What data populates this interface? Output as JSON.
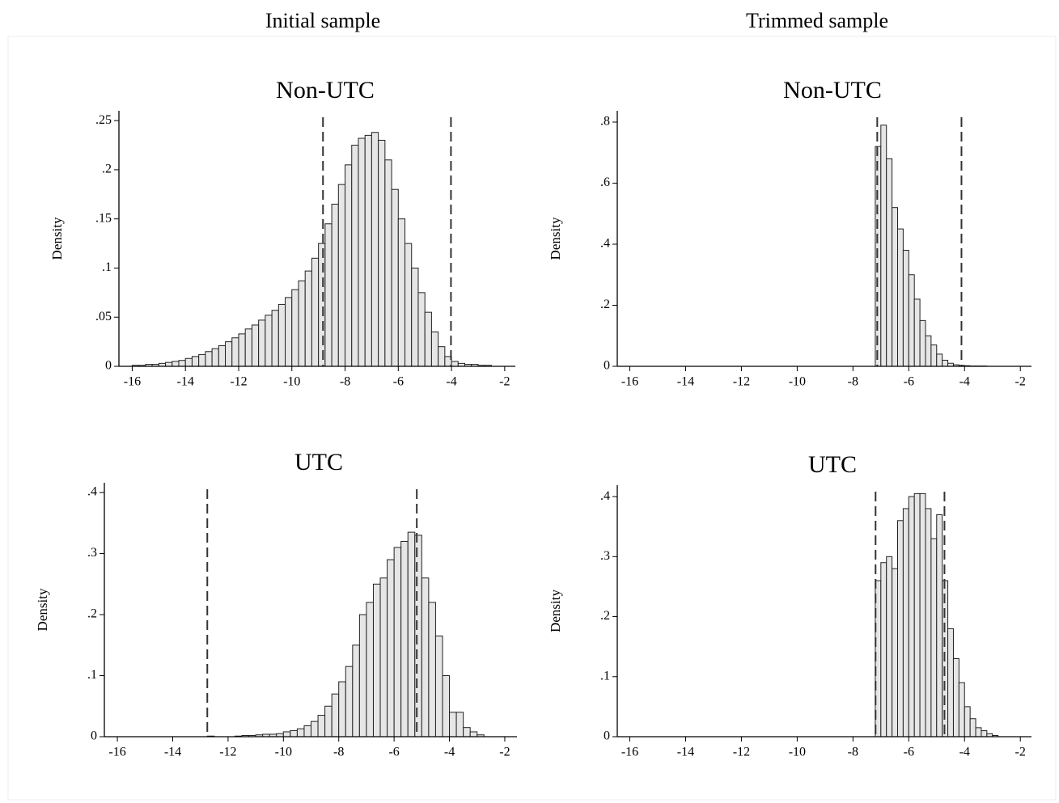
{
  "column_titles": [
    "Initial sample",
    "Trimmed sample"
  ],
  "chart_data": [
    {
      "type": "histogram",
      "title": "Non-UTC",
      "y_label": "Density",
      "color": "#e6e6e6",
      "bins": [
        -16,
        -15.75,
        -15.5,
        -15.25,
        -15,
        -14.75,
        -14.5,
        -14.25,
        -14,
        -13.75,
        -13.5,
        -13.25,
        -13,
        -12.75,
        -12.5,
        -12.25,
        -12,
        -11.75,
        -11.5,
        -11.25,
        -11,
        -10.75,
        -10.5,
        -10.25,
        -10,
        -9.75,
        -9.5,
        -9.25,
        -9,
        -8.75,
        -8.5,
        -8.25,
        -8,
        -7.75,
        -7.5,
        -7.25,
        -7,
        -6.75,
        -6.5,
        -6.25,
        -6,
        -5.75,
        -5.5,
        -5.25,
        -5,
        -4.75,
        -4.5,
        -4.25,
        -4,
        -3.75,
        -3.5,
        -3.25,
        -3,
        -2.75,
        -2.5
      ],
      "values": [
        0.001,
        0.001,
        0.002,
        0.002,
        0.003,
        0.004,
        0.005,
        0.006,
        0.008,
        0.01,
        0.012,
        0.015,
        0.018,
        0.021,
        0.025,
        0.029,
        0.033,
        0.038,
        0.042,
        0.047,
        0.052,
        0.057,
        0.063,
        0.07,
        0.078,
        0.087,
        0.097,
        0.11,
        0.125,
        0.145,
        0.165,
        0.185,
        0.205,
        0.225,
        0.232,
        0.235,
        0.238,
        0.23,
        0.21,
        0.18,
        0.15,
        0.125,
        0.1,
        0.075,
        0.055,
        0.035,
        0.02,
        0.01,
        0.005,
        0.003,
        0.002,
        0.002,
        0.001,
        0.001
      ],
      "vlines": [
        -8.83,
        -4.02
      ],
      "xlim": [
        -16.5,
        -1.6
      ],
      "ylim": [
        0,
        0.26
      ],
      "xticks": [
        -16,
        -14,
        -12,
        -10,
        -8,
        -6,
        -4,
        -2
      ],
      "yticks": [
        0,
        {
          "value": 0.05,
          "label": ".05"
        },
        {
          "value": 0.1,
          "label": ".1"
        },
        {
          "value": 0.15,
          "label": ".15"
        },
        {
          "value": 0.2,
          "label": ".2"
        },
        {
          "value": 0.25,
          "label": ".25"
        }
      ]
    },
    {
      "type": "histogram",
      "title": "Non-UTC",
      "y_label": "Density",
      "color": "#e6e6e6",
      "bins": [
        -7.2,
        -7,
        -6.8,
        -6.6,
        -6.4,
        -6.2,
        -6,
        -5.8,
        -5.6,
        -5.4,
        -5.2,
        -5,
        -4.8,
        -4.6,
        -4.4,
        -4.2,
        -4,
        -3.8,
        -3.6,
        -3.4,
        -3.2
      ],
      "values": [
        0.72,
        0.79,
        0.68,
        0.52,
        0.45,
        0.38,
        0.3,
        0.22,
        0.15,
        0.1,
        0.07,
        0.04,
        0.02,
        0.01,
        0.005,
        0.003,
        0.002,
        0.001,
        0.001,
        0.001
      ],
      "vlines": [
        -7.13,
        -4.11
      ],
      "xlim": [
        -16.45,
        -1.6
      ],
      "ylim": [
        0,
        0.837
      ],
      "xticks": [
        -16,
        -14,
        -12,
        -10,
        -8,
        -6,
        -4,
        -2
      ],
      "yticks": [
        0,
        {
          "value": 0.2,
          "label": ".2"
        },
        {
          "value": 0.4,
          "label": ".4"
        },
        {
          "value": 0.6,
          "label": ".6"
        },
        {
          "value": 0.8,
          "label": ".8"
        }
      ]
    },
    {
      "type": "histogram",
      "title": "UTC",
      "y_label": "Density",
      "color": "#e6e6e6",
      "bins": [
        -12.75,
        -12.5,
        -12.25,
        -12,
        -11.75,
        -11.5,
        -11.25,
        -11,
        -10.75,
        -10.5,
        -10.25,
        -10,
        -9.75,
        -9.5,
        -9.25,
        -9,
        -8.75,
        -8.5,
        -8.25,
        -8,
        -7.75,
        -7.5,
        -7.25,
        -7,
        -6.75,
        -6.5,
        -6.25,
        -6,
        -5.75,
        -5.5,
        -5.25,
        -5,
        -4.75,
        -4.5,
        -4.25,
        -4,
        -3.75,
        -3.5,
        -3.25,
        -3,
        -2.75
      ],
      "values": [
        0.001,
        0,
        0,
        0,
        0.001,
        0.002,
        0.002,
        0.003,
        0.004,
        0.004,
        0.005,
        0.008,
        0.01,
        0.013,
        0.018,
        0.025,
        0.035,
        0.05,
        0.07,
        0.09,
        0.115,
        0.15,
        0.2,
        0.22,
        0.25,
        0.26,
        0.29,
        0.31,
        0.32,
        0.335,
        0.33,
        0.26,
        0.22,
        0.165,
        0.1,
        0.04,
        0.04,
        0.015,
        0.008,
        0.003
      ],
      "vlines": [
        -12.75,
        -5.18
      ],
      "xlim": [
        -16.47,
        -1.56
      ],
      "ylim": [
        0,
        0.416
      ],
      "xticks": [
        -16,
        -14,
        -12,
        -10,
        -8,
        -6,
        -4,
        -2
      ],
      "yticks": [
        0,
        {
          "value": 0.1,
          "label": ".1"
        },
        {
          "value": 0.2,
          "label": ".2"
        },
        {
          "value": 0.3,
          "label": ".3"
        },
        {
          "value": 0.4,
          "label": ".4"
        }
      ]
    },
    {
      "type": "histogram",
      "title": "UTC",
      "y_label": "Density",
      "color": "#e6e6e6",
      "bins": [
        -7.2,
        -7,
        -6.8,
        -6.6,
        -6.4,
        -6.2,
        -6,
        -5.8,
        -5.6,
        -5.4,
        -5.2,
        -5,
        -4.8,
        -4.6,
        -4.4,
        -4.2,
        -4,
        -3.8,
        -3.6,
        -3.4,
        -3.2,
        -3,
        -2.8
      ],
      "values": [
        0.26,
        0.29,
        0.3,
        0.28,
        0.36,
        0.38,
        0.4,
        0.405,
        0.405,
        0.38,
        0.33,
        0.37,
        0.26,
        0.18,
        0.13,
        0.09,
        0.05,
        0.03,
        0.015,
        0.01,
        0.005,
        0.002
      ],
      "vlines": [
        -7.19,
        -4.72
      ],
      "xlim": [
        -16.45,
        -1.6
      ],
      "ylim": [
        0,
        0.419
      ],
      "xticks": [
        -16,
        -14,
        -12,
        -10,
        -8,
        -6,
        -4,
        -2
      ],
      "yticks": [
        0,
        {
          "value": 0.1,
          "label": ".1"
        },
        {
          "value": 0.2,
          "label": ".2"
        },
        {
          "value": 0.3,
          "label": ".3"
        },
        {
          "value": 0.4,
          "label": ".4"
        }
      ]
    }
  ]
}
